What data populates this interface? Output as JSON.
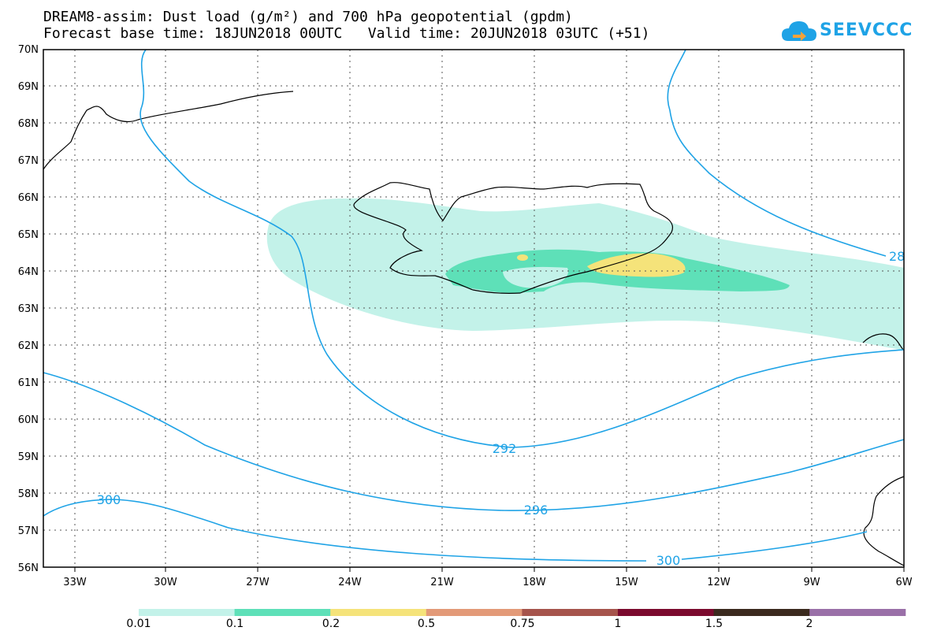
{
  "header": {
    "title_line1": "DREAM8-assim: Dust load (g/m²) and 700 hPa geopotential (gpdm)",
    "title_line2": "Forecast base time: 18JUN2018 00UTC   Valid time: 20JUN2018 03UTC (+51)"
  },
  "logo": {
    "text": "SEEVCCC",
    "icon": "cloud-icon",
    "color": "#1fa3e6"
  },
  "map": {
    "lat_labels": [
      "70N",
      "69N",
      "68N",
      "67N",
      "66N",
      "65N",
      "64N",
      "63N",
      "62N",
      "61N",
      "60N",
      "59N",
      "58N",
      "57N",
      "56N"
    ],
    "lon_labels": [
      "33W",
      "30W",
      "27W",
      "24W",
      "21W",
      "18W",
      "15W",
      "12W",
      "9W",
      "6W"
    ],
    "contour_labels": [
      "292",
      "296",
      "300",
      "300",
      "28"
    ],
    "contour_color": "#1fa3e6"
  },
  "colorbar": {
    "labels": [
      "0.01",
      "0.1",
      "0.2",
      "0.5",
      "0.75",
      "1",
      "1.5",
      "2"
    ],
    "colors": [
      "#c3f2e9",
      "#5ee0b8",
      "#f5e37a",
      "#e39a78",
      "#a6544c",
      "#7b0a2e",
      "#3b2a1e",
      "#9a70a8"
    ]
  }
}
